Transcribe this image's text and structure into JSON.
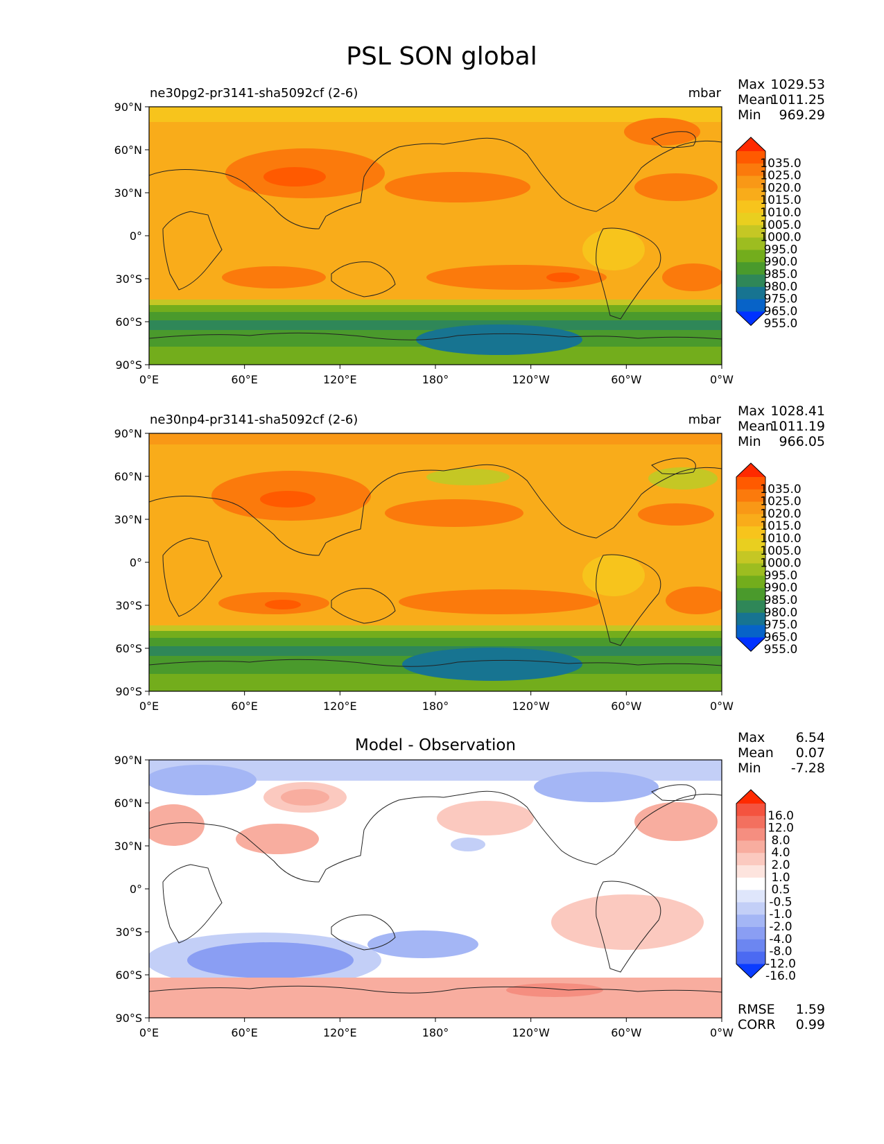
{
  "chart_data": {
    "type": "heatmap",
    "title": "PSL SON global",
    "x_ticks": [
      "0°E",
      "60°E",
      "120°E",
      "180°",
      "120°W",
      "60°W",
      "0°W"
    ],
    "y_ticks": [
      "90°N",
      "60°N",
      "30°N",
      "0°",
      "30°S",
      "60°S",
      "90°S"
    ],
    "panels": [
      {
        "id": "test",
        "left_title": "ne30pg2-pr3141-sha5092cf (2-6)",
        "units": "mbar",
        "stats": [
          {
            "label": "Max",
            "value": "1029.53"
          },
          {
            "label": "Mean",
            "value": "1011.25"
          },
          {
            "label": "Min",
            "value": "969.29"
          }
        ],
        "colorbar_levels": [
          "1035.0",
          "1025.0",
          "1020.0",
          "1015.0",
          "1010.0",
          "1005.0",
          "1000.0",
          "995.0",
          "990.0",
          "985.0",
          "980.0",
          "975.0",
          "965.0",
          "955.0"
        ],
        "colorbar_colors": [
          "#ff2a00",
          "#ff5a00",
          "#fb7a0c",
          "#f99816",
          "#f9ac1a",
          "#f7c41c",
          "#e9cf1f",
          "#c5c724",
          "#9dbd20",
          "#73ad1c",
          "#4a9a2c",
          "#2f8758",
          "#177491",
          "#0763c8",
          "#0032ff"
        ]
      },
      {
        "id": "ref",
        "left_title": "ne30np4-pr3141-sha5092cf (2-6)",
        "units": "mbar",
        "stats": [
          {
            "label": "Max",
            "value": "1028.41"
          },
          {
            "label": "Mean",
            "value": "1011.19"
          },
          {
            "label": "Min",
            "value": "966.05"
          }
        ],
        "colorbar_levels": [
          "1035.0",
          "1025.0",
          "1020.0",
          "1015.0",
          "1010.0",
          "1005.0",
          "1000.0",
          "995.0",
          "990.0",
          "985.0",
          "980.0",
          "975.0",
          "965.0",
          "955.0"
        ],
        "colorbar_colors": [
          "#ff2a00",
          "#ff5a00",
          "#fb7a0c",
          "#f99816",
          "#f9ac1a",
          "#f7c41c",
          "#e9cf1f",
          "#c5c724",
          "#9dbd20",
          "#73ad1c",
          "#4a9a2c",
          "#2f8758",
          "#177491",
          "#0763c8",
          "#0032ff"
        ]
      },
      {
        "id": "diff",
        "center_title": "Model - Observation",
        "stats": [
          {
            "label": "Max",
            "value": "6.54"
          },
          {
            "label": "Mean",
            "value": "0.07"
          },
          {
            "label": "Min",
            "value": "-7.28"
          }
        ],
        "colorbar_levels": [
          "16.0",
          "12.0",
          "8.0",
          "4.0",
          "2.0",
          "1.0",
          "0.5",
          "-0.5",
          "-1.0",
          "-2.0",
          "-4.0",
          "-8.0",
          "-12.0",
          "-16.0"
        ],
        "colorbar_colors": [
          "#ff2a00",
          "#f4533f",
          "#f3705f",
          "#f58e80",
          "#f8ad9f",
          "#fbc9bf",
          "#fde4de",
          "#ffffff",
          "#dfe6fb",
          "#c3cff7",
          "#a4b6f5",
          "#8a9ef3",
          "#6c86f1",
          "#4b6af2",
          "#0a3cff"
        ],
        "footer_stats": [
          {
            "label": "RMSE",
            "value": "1.59"
          },
          {
            "label": "CORR",
            "value": "0.99"
          }
        ]
      }
    ]
  }
}
